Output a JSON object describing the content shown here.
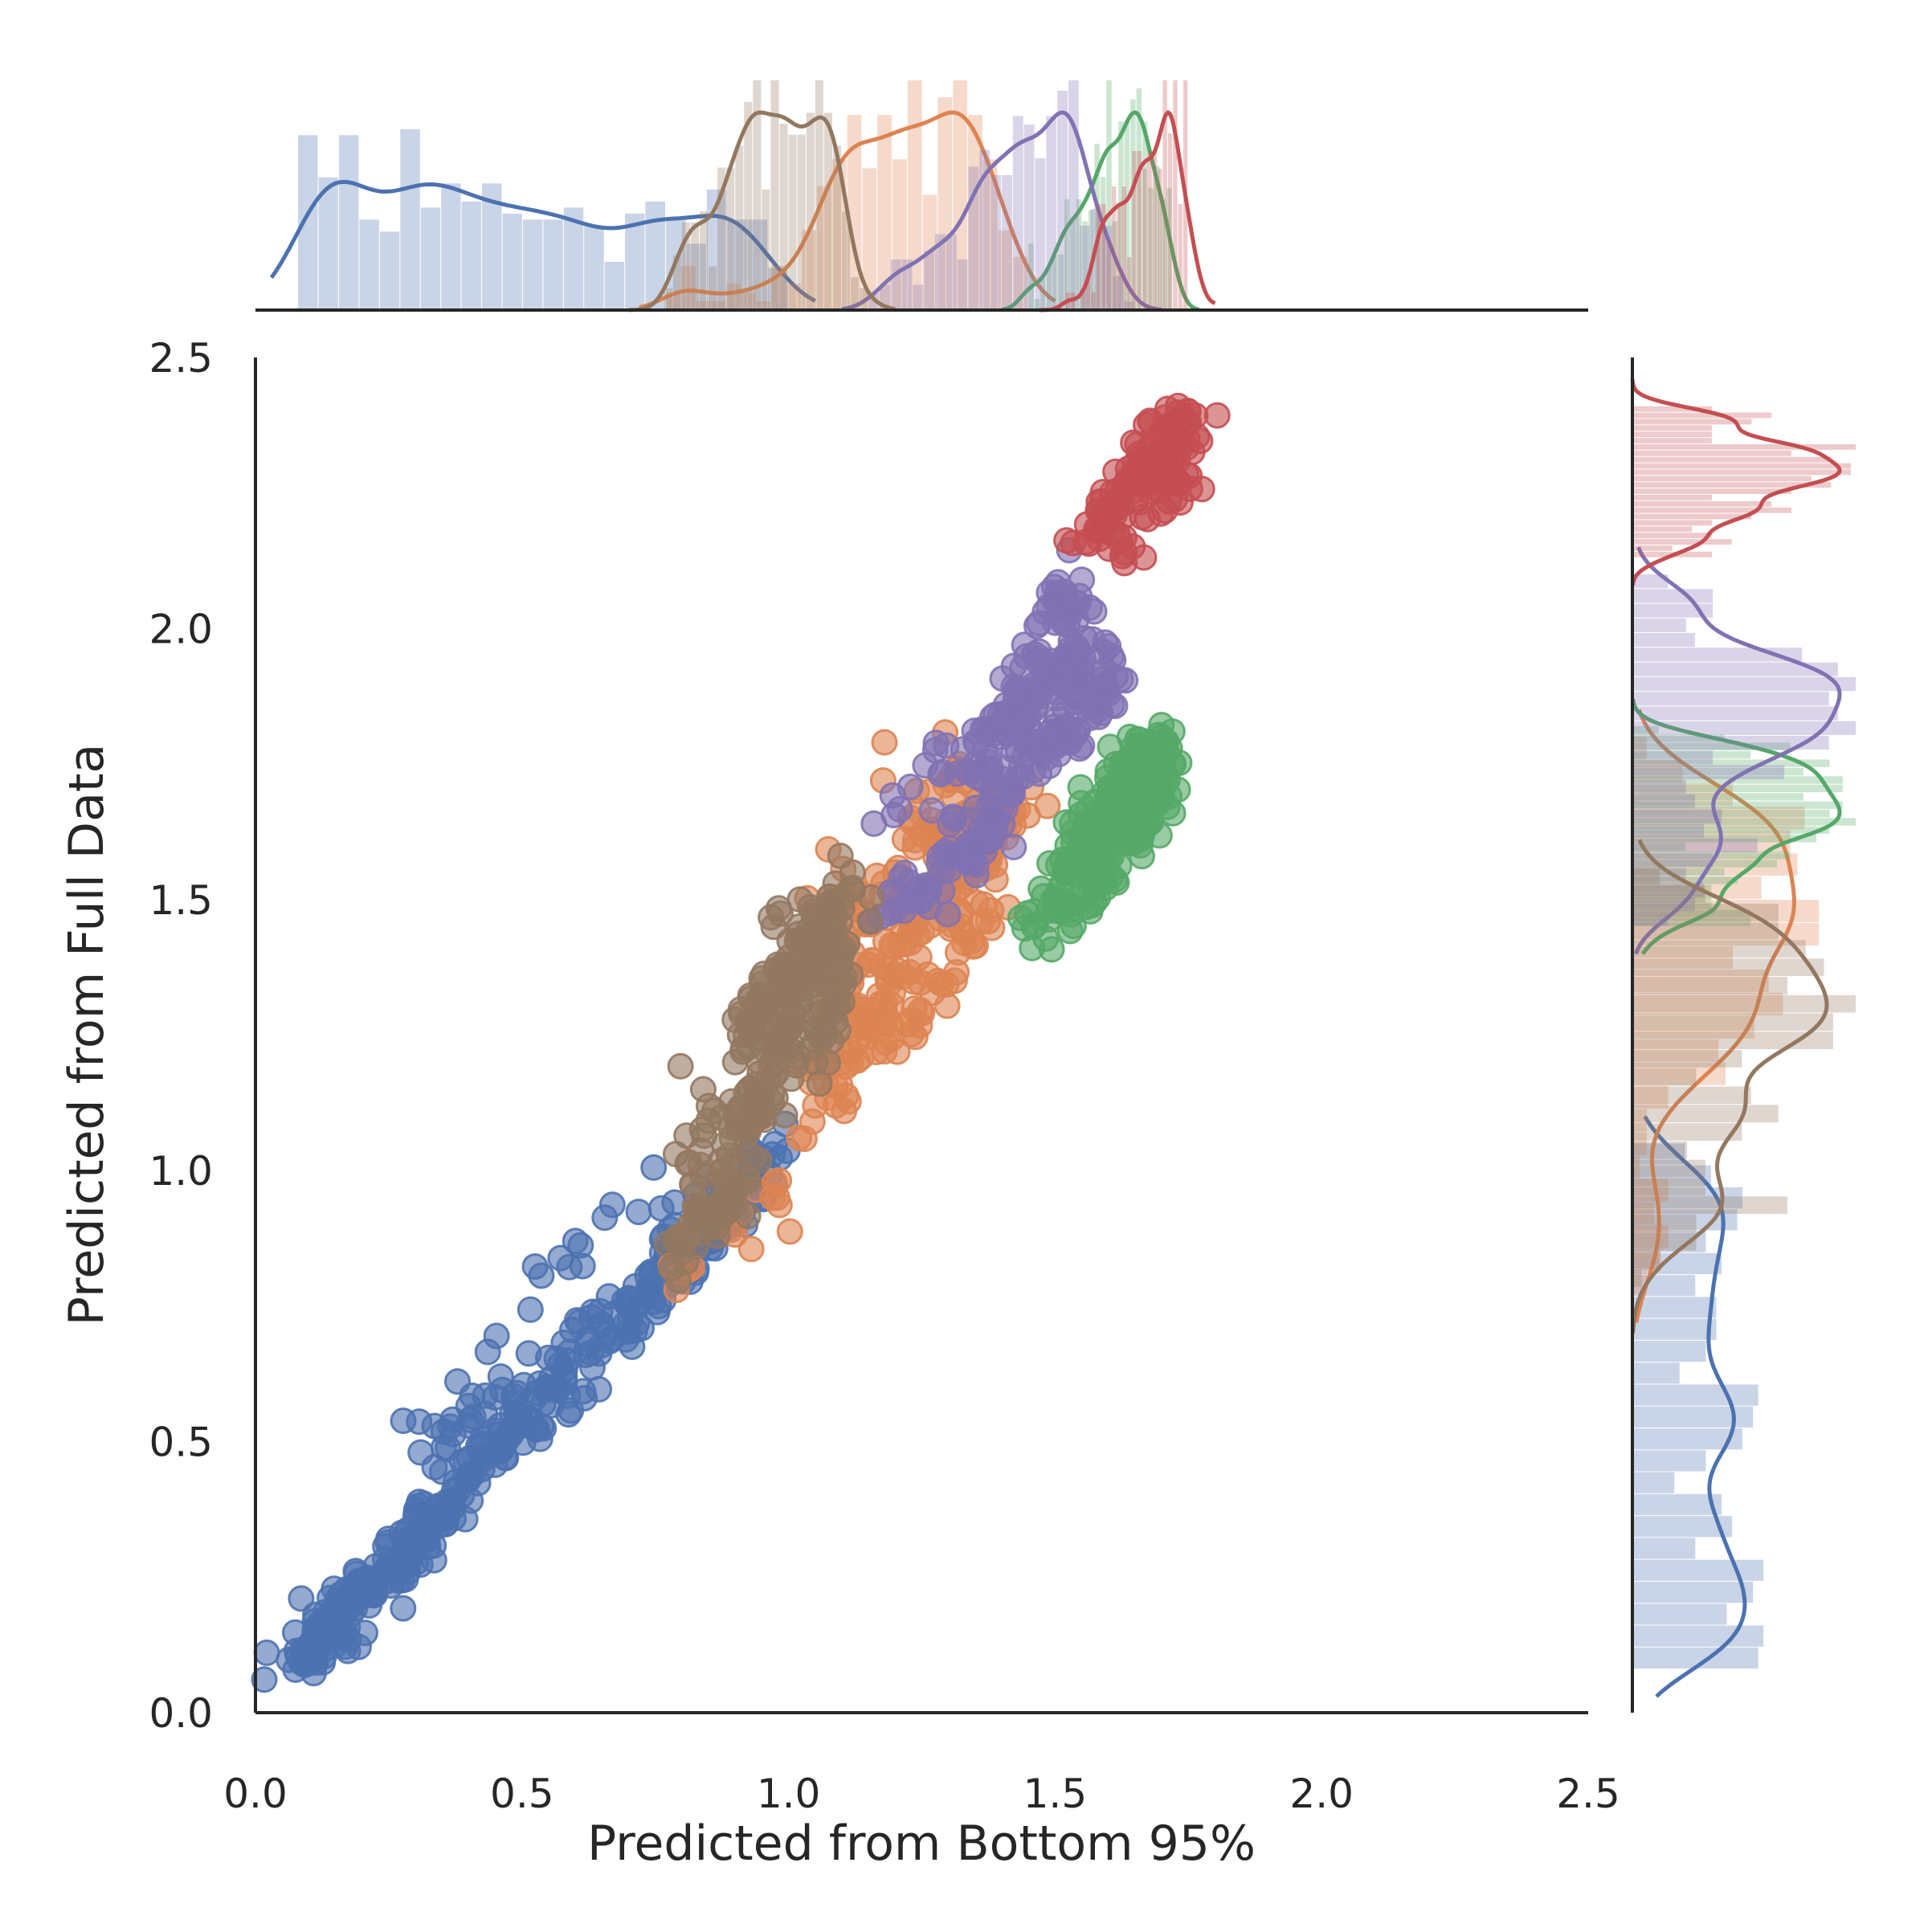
{
  "chart_data": {
    "type": "scatter",
    "title": "",
    "xlabel": "Predicted from Bottom 95%",
    "ylabel": "Predicted from Full Data",
    "xlim": [
      0.0,
      2.5
    ],
    "ylim": [
      0.0,
      2.5
    ],
    "xticks": [
      "0.0",
      "0.5",
      "1.0",
      "1.5",
      "2.0",
      "2.5"
    ],
    "yticks": [
      "0.0",
      "0.5",
      "1.0",
      "1.5",
      "2.0",
      "2.5"
    ],
    "grid": false,
    "legend": "none",
    "marginals": "histogram + kde on top (x) and right (y)",
    "series": [
      {
        "color": "#4c72b0",
        "x_range": [
          0.08,
          1.0
        ],
        "y_range": [
          0.08,
          1.05
        ],
        "points": [
          [
            0.09,
            0.09
          ],
          [
            0.1,
            0.11
          ],
          [
            0.12,
            0.13
          ],
          [
            0.14,
            0.15
          ],
          [
            0.16,
            0.17
          ],
          [
            0.18,
            0.2
          ],
          [
            0.2,
            0.22
          ],
          [
            0.22,
            0.24
          ],
          [
            0.25,
            0.27
          ],
          [
            0.28,
            0.3
          ],
          [
            0.3,
            0.33
          ],
          [
            0.33,
            0.36
          ],
          [
            0.36,
            0.39
          ],
          [
            0.4,
            0.43
          ],
          [
            0.43,
            0.47
          ],
          [
            0.47,
            0.5
          ],
          [
            0.5,
            0.53
          ],
          [
            0.54,
            0.57
          ],
          [
            0.58,
            0.62
          ],
          [
            0.62,
            0.66
          ],
          [
            0.66,
            0.7
          ],
          [
            0.7,
            0.75
          ],
          [
            0.74,
            0.78
          ],
          [
            0.78,
            0.83
          ],
          [
            0.82,
            0.87
          ],
          [
            0.86,
            0.91
          ],
          [
            0.9,
            0.95
          ],
          [
            0.94,
            0.99
          ],
          [
            0.97,
            1.03
          ],
          [
            0.6,
            0.87
          ],
          [
            0.31,
            0.48
          ],
          [
            0.46,
            0.62
          ],
          [
            0.95,
            0.95
          ]
        ]
      },
      {
        "color": "#dd8452",
        "x_range": [
          0.77,
          1.45
        ],
        "y_range": [
          0.77,
          1.8
        ],
        "points": [
          [
            1.05,
            1.12
          ],
          [
            1.1,
            1.2
          ],
          [
            1.15,
            1.28
          ],
          [
            1.2,
            1.36
          ],
          [
            1.25,
            1.44
          ],
          [
            1.3,
            1.5
          ],
          [
            1.35,
            1.58
          ],
          [
            1.4,
            1.65
          ],
          [
            1.42,
            1.7
          ],
          [
            1.25,
            1.62
          ],
          [
            1.32,
            1.75
          ],
          [
            1.2,
            1.55
          ],
          [
            1.12,
            1.45
          ],
          [
            1.08,
            1.3
          ],
          [
            1.18,
            1.22
          ],
          [
            1.28,
            1.35
          ],
          [
            1.38,
            1.48
          ],
          [
            1.36,
            1.6
          ],
          [
            1.22,
            1.48
          ],
          [
            1.15,
            1.38
          ],
          [
            0.97,
            0.95
          ],
          [
            0.79,
            0.78
          ],
          [
            1.18,
            1.79
          ]
        ]
      },
      {
        "color": "#55a868",
        "x_range": [
          1.45,
          1.72
        ],
        "y_range": [
          1.45,
          1.82
        ],
        "points": [
          [
            1.52,
            1.55
          ],
          [
            1.55,
            1.6
          ],
          [
            1.58,
            1.65
          ],
          [
            1.6,
            1.68
          ],
          [
            1.62,
            1.7
          ],
          [
            1.64,
            1.72
          ],
          [
            1.66,
            1.75
          ],
          [
            1.68,
            1.78
          ],
          [
            1.7,
            1.8
          ],
          [
            1.7,
            1.72
          ],
          [
            1.68,
            1.68
          ],
          [
            1.65,
            1.65
          ],
          [
            1.62,
            1.62
          ],
          [
            1.6,
            1.58
          ],
          [
            1.58,
            1.55
          ],
          [
            1.55,
            1.52
          ],
          [
            1.5,
            1.48
          ],
          [
            1.46,
            1.45
          ],
          [
            1.64,
            1.8
          ],
          [
            1.66,
            1.6
          ],
          [
            1.72,
            1.75
          ]
        ]
      },
      {
        "color": "#8172b3",
        "x_range": [
          1.15,
          1.65
        ],
        "y_range": [
          1.45,
          2.1
        ],
        "points": [
          [
            1.35,
            1.75
          ],
          [
            1.4,
            1.8
          ],
          [
            1.42,
            1.85
          ],
          [
            1.45,
            1.88
          ],
          [
            1.48,
            1.9
          ],
          [
            1.5,
            1.92
          ],
          [
            1.52,
            1.95
          ],
          [
            1.55,
            1.9
          ],
          [
            1.58,
            1.85
          ],
          [
            1.52,
            1.8
          ],
          [
            1.48,
            1.78
          ],
          [
            1.45,
            1.82
          ],
          [
            1.42,
            1.7
          ],
          [
            1.38,
            1.65
          ],
          [
            1.35,
            1.6
          ],
          [
            1.3,
            1.58
          ],
          [
            1.25,
            1.52
          ],
          [
            1.2,
            1.48
          ],
          [
            1.5,
            2.05
          ],
          [
            1.57,
            1.98
          ],
          [
            1.6,
            1.88
          ],
          [
            1.16,
            1.64
          ],
          [
            1.55,
            2.09
          ],
          [
            1.47,
            2.01
          ]
        ]
      },
      {
        "color": "#c44e52",
        "x_range": [
          1.52,
          1.75
        ],
        "y_range": [
          2.13,
          2.41
        ],
        "points": [
          [
            1.68,
            2.3
          ],
          [
            1.7,
            2.33
          ],
          [
            1.72,
            2.36
          ],
          [
            1.74,
            2.39
          ],
          [
            1.73,
            2.31
          ],
          [
            1.71,
            2.27
          ],
          [
            1.69,
            2.28
          ],
          [
            1.65,
            2.28
          ],
          [
            1.62,
            2.24
          ],
          [
            1.58,
            2.18
          ],
          [
            1.6,
            2.22
          ],
          [
            1.63,
            2.14
          ],
          [
            1.75,
            2.4
          ]
        ]
      },
      {
        "color": "#937860",
        "x_range": [
          0.75,
          1.15
        ],
        "y_range": [
          0.75,
          1.56
        ],
        "points": [
          [
            0.85,
            0.9
          ],
          [
            0.88,
            0.95
          ],
          [
            0.9,
            1.02
          ],
          [
            0.92,
            1.08
          ],
          [
            0.95,
            1.14
          ],
          [
            0.97,
            1.2
          ],
          [
            1.0,
            1.26
          ],
          [
            1.02,
            1.32
          ],
          [
            1.05,
            1.38
          ],
          [
            1.08,
            1.44
          ],
          [
            1.1,
            1.5
          ],
          [
            1.02,
            1.45
          ],
          [
            0.98,
            1.38
          ],
          [
            0.95,
            1.3
          ],
          [
            0.92,
            1.25
          ],
          [
            1.05,
            1.2
          ],
          [
            1.08,
            1.3
          ],
          [
            1.1,
            1.4
          ],
          [
            0.8,
            0.85
          ],
          [
            0.84,
            1.15
          ],
          [
            0.78,
            0.82
          ],
          [
            1.12,
            1.55
          ],
          [
            0.9,
            1.2
          ]
        ]
      }
    ]
  }
}
